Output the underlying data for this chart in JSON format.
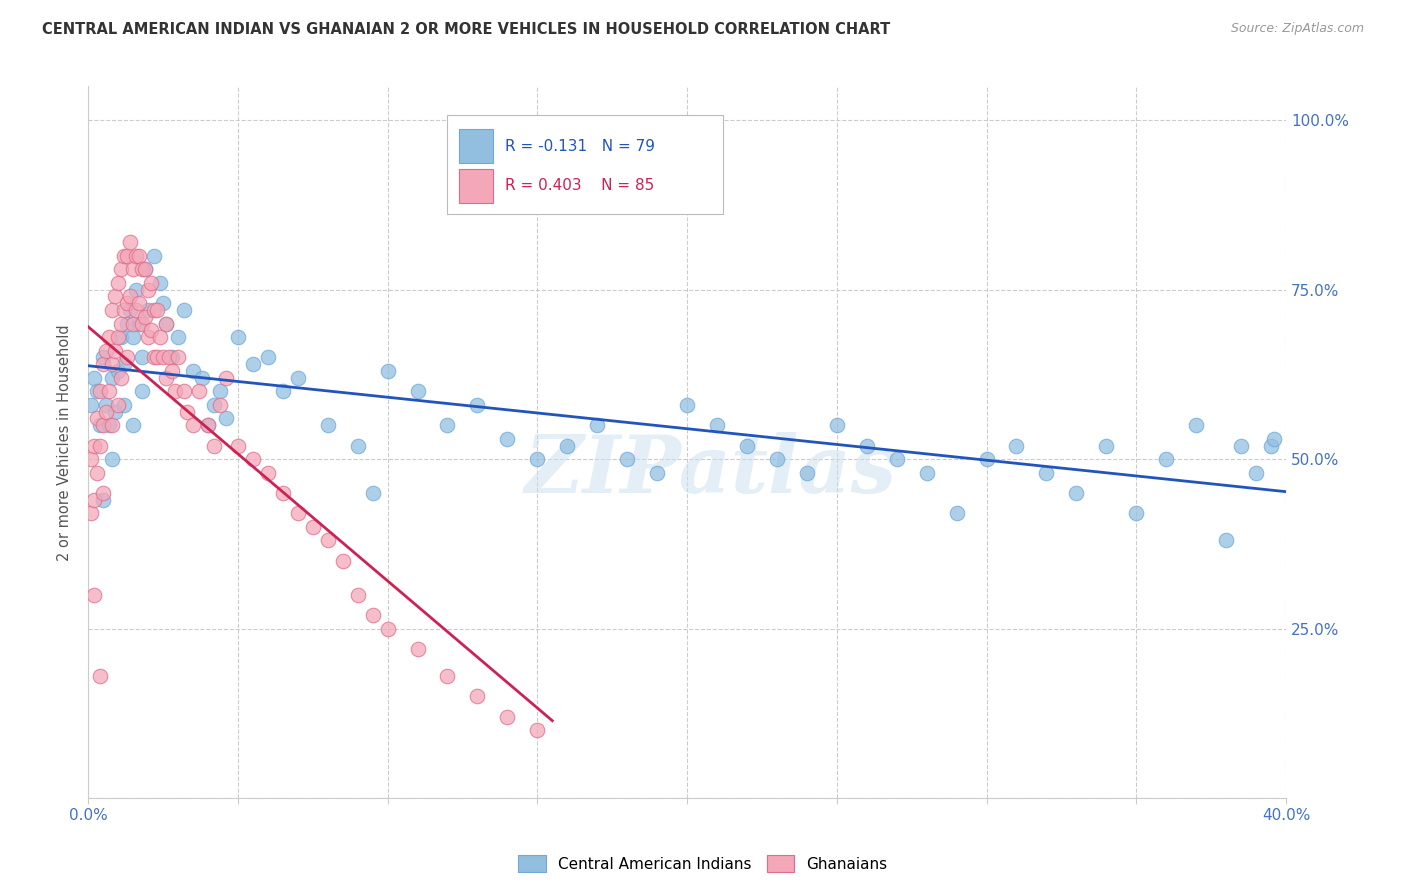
{
  "title": "CENTRAL AMERICAN INDIAN VS GHANAIAN 2 OR MORE VEHICLES IN HOUSEHOLD CORRELATION CHART",
  "source": "Source: ZipAtlas.com",
  "ylabel": "2 or more Vehicles in Household",
  "xlim": [
    0.0,
    0.4
  ],
  "ylim": [
    0.0,
    1.05
  ],
  "legend_label_blue": "Central American Indians",
  "legend_label_pink": "Ghanaians",
  "R_blue": -0.131,
  "N_blue": 79,
  "R_pink": 0.403,
  "N_pink": 85,
  "blue_color": "#92bfdf",
  "pink_color": "#f4a7b9",
  "blue_edge_color": "#6fa8dc",
  "pink_edge_color": "#e06c88",
  "trendline_blue_color": "#2255bb",
  "trendline_pink_color": "#cc2255",
  "ytick_positions": [
    0.0,
    0.25,
    0.5,
    0.75,
    1.0
  ],
  "ytick_labels": [
    "",
    "25.0%",
    "50.0%",
    "75.0%",
    "100.0%"
  ],
  "xtick_positions": [
    0.0,
    0.05,
    0.1,
    0.15,
    0.2,
    0.25,
    0.3,
    0.35,
    0.4
  ],
  "blue_x": [
    0.001,
    0.002,
    0.003,
    0.004,
    0.005,
    0.006,
    0.007,
    0.008,
    0.009,
    0.01,
    0.011,
    0.012,
    0.013,
    0.014,
    0.015,
    0.016,
    0.017,
    0.018,
    0.019,
    0.02,
    0.022,
    0.024,
    0.025,
    0.026,
    0.028,
    0.03,
    0.032,
    0.035,
    0.038,
    0.04,
    0.042,
    0.044,
    0.046,
    0.05,
    0.055,
    0.06,
    0.065,
    0.07,
    0.08,
    0.09,
    0.095,
    0.1,
    0.11,
    0.12,
    0.13,
    0.14,
    0.15,
    0.16,
    0.17,
    0.18,
    0.19,
    0.2,
    0.21,
    0.22,
    0.23,
    0.24,
    0.25,
    0.26,
    0.27,
    0.28,
    0.29,
    0.3,
    0.31,
    0.32,
    0.33,
    0.34,
    0.35,
    0.36,
    0.37,
    0.38,
    0.385,
    0.39,
    0.395,
    0.396,
    0.005,
    0.008,
    0.012,
    0.015,
    0.018
  ],
  "blue_y": [
    0.58,
    0.62,
    0.6,
    0.55,
    0.65,
    0.58,
    0.55,
    0.62,
    0.57,
    0.63,
    0.68,
    0.64,
    0.7,
    0.72,
    0.68,
    0.75,
    0.7,
    0.65,
    0.78,
    0.72,
    0.8,
    0.76,
    0.73,
    0.7,
    0.65,
    0.68,
    0.72,
    0.63,
    0.62,
    0.55,
    0.58,
    0.6,
    0.56,
    0.68,
    0.64,
    0.65,
    0.6,
    0.62,
    0.55,
    0.52,
    0.45,
    0.63,
    0.6,
    0.55,
    0.58,
    0.53,
    0.5,
    0.52,
    0.55,
    0.5,
    0.48,
    0.58,
    0.55,
    0.52,
    0.5,
    0.48,
    0.55,
    0.52,
    0.5,
    0.48,
    0.42,
    0.5,
    0.52,
    0.48,
    0.45,
    0.52,
    0.42,
    0.5,
    0.55,
    0.38,
    0.52,
    0.48,
    0.52,
    0.53,
    0.44,
    0.5,
    0.58,
    0.55,
    0.6
  ],
  "pink_x": [
    0.001,
    0.001,
    0.002,
    0.002,
    0.003,
    0.003,
    0.004,
    0.004,
    0.005,
    0.005,
    0.005,
    0.006,
    0.006,
    0.007,
    0.007,
    0.008,
    0.008,
    0.008,
    0.009,
    0.009,
    0.01,
    0.01,
    0.01,
    0.011,
    0.011,
    0.011,
    0.012,
    0.012,
    0.013,
    0.013,
    0.013,
    0.014,
    0.014,
    0.015,
    0.015,
    0.016,
    0.016,
    0.017,
    0.017,
    0.018,
    0.018,
    0.019,
    0.019,
    0.02,
    0.02,
    0.021,
    0.021,
    0.022,
    0.022,
    0.023,
    0.023,
    0.024,
    0.025,
    0.026,
    0.026,
    0.027,
    0.028,
    0.029,
    0.03,
    0.032,
    0.033,
    0.035,
    0.037,
    0.04,
    0.042,
    0.044,
    0.046,
    0.05,
    0.055,
    0.06,
    0.065,
    0.07,
    0.075,
    0.08,
    0.085,
    0.09,
    0.095,
    0.1,
    0.11,
    0.12,
    0.13,
    0.14,
    0.15,
    0.002,
    0.004
  ],
  "pink_y": [
    0.5,
    0.42,
    0.52,
    0.44,
    0.56,
    0.48,
    0.6,
    0.52,
    0.64,
    0.55,
    0.45,
    0.66,
    0.57,
    0.68,
    0.6,
    0.72,
    0.64,
    0.55,
    0.74,
    0.66,
    0.76,
    0.68,
    0.58,
    0.78,
    0.7,
    0.62,
    0.8,
    0.72,
    0.8,
    0.73,
    0.65,
    0.82,
    0.74,
    0.78,
    0.7,
    0.8,
    0.72,
    0.8,
    0.73,
    0.78,
    0.7,
    0.78,
    0.71,
    0.75,
    0.68,
    0.76,
    0.69,
    0.72,
    0.65,
    0.72,
    0.65,
    0.68,
    0.65,
    0.62,
    0.7,
    0.65,
    0.63,
    0.6,
    0.65,
    0.6,
    0.57,
    0.55,
    0.6,
    0.55,
    0.52,
    0.58,
    0.62,
    0.52,
    0.5,
    0.48,
    0.45,
    0.42,
    0.4,
    0.38,
    0.35,
    0.3,
    0.27,
    0.25,
    0.22,
    0.18,
    0.15,
    0.12,
    0.1,
    0.3,
    0.18
  ],
  "watermark_text": "ZIPatlas",
  "background_color": "#ffffff",
  "grid_color": "#cccccc"
}
